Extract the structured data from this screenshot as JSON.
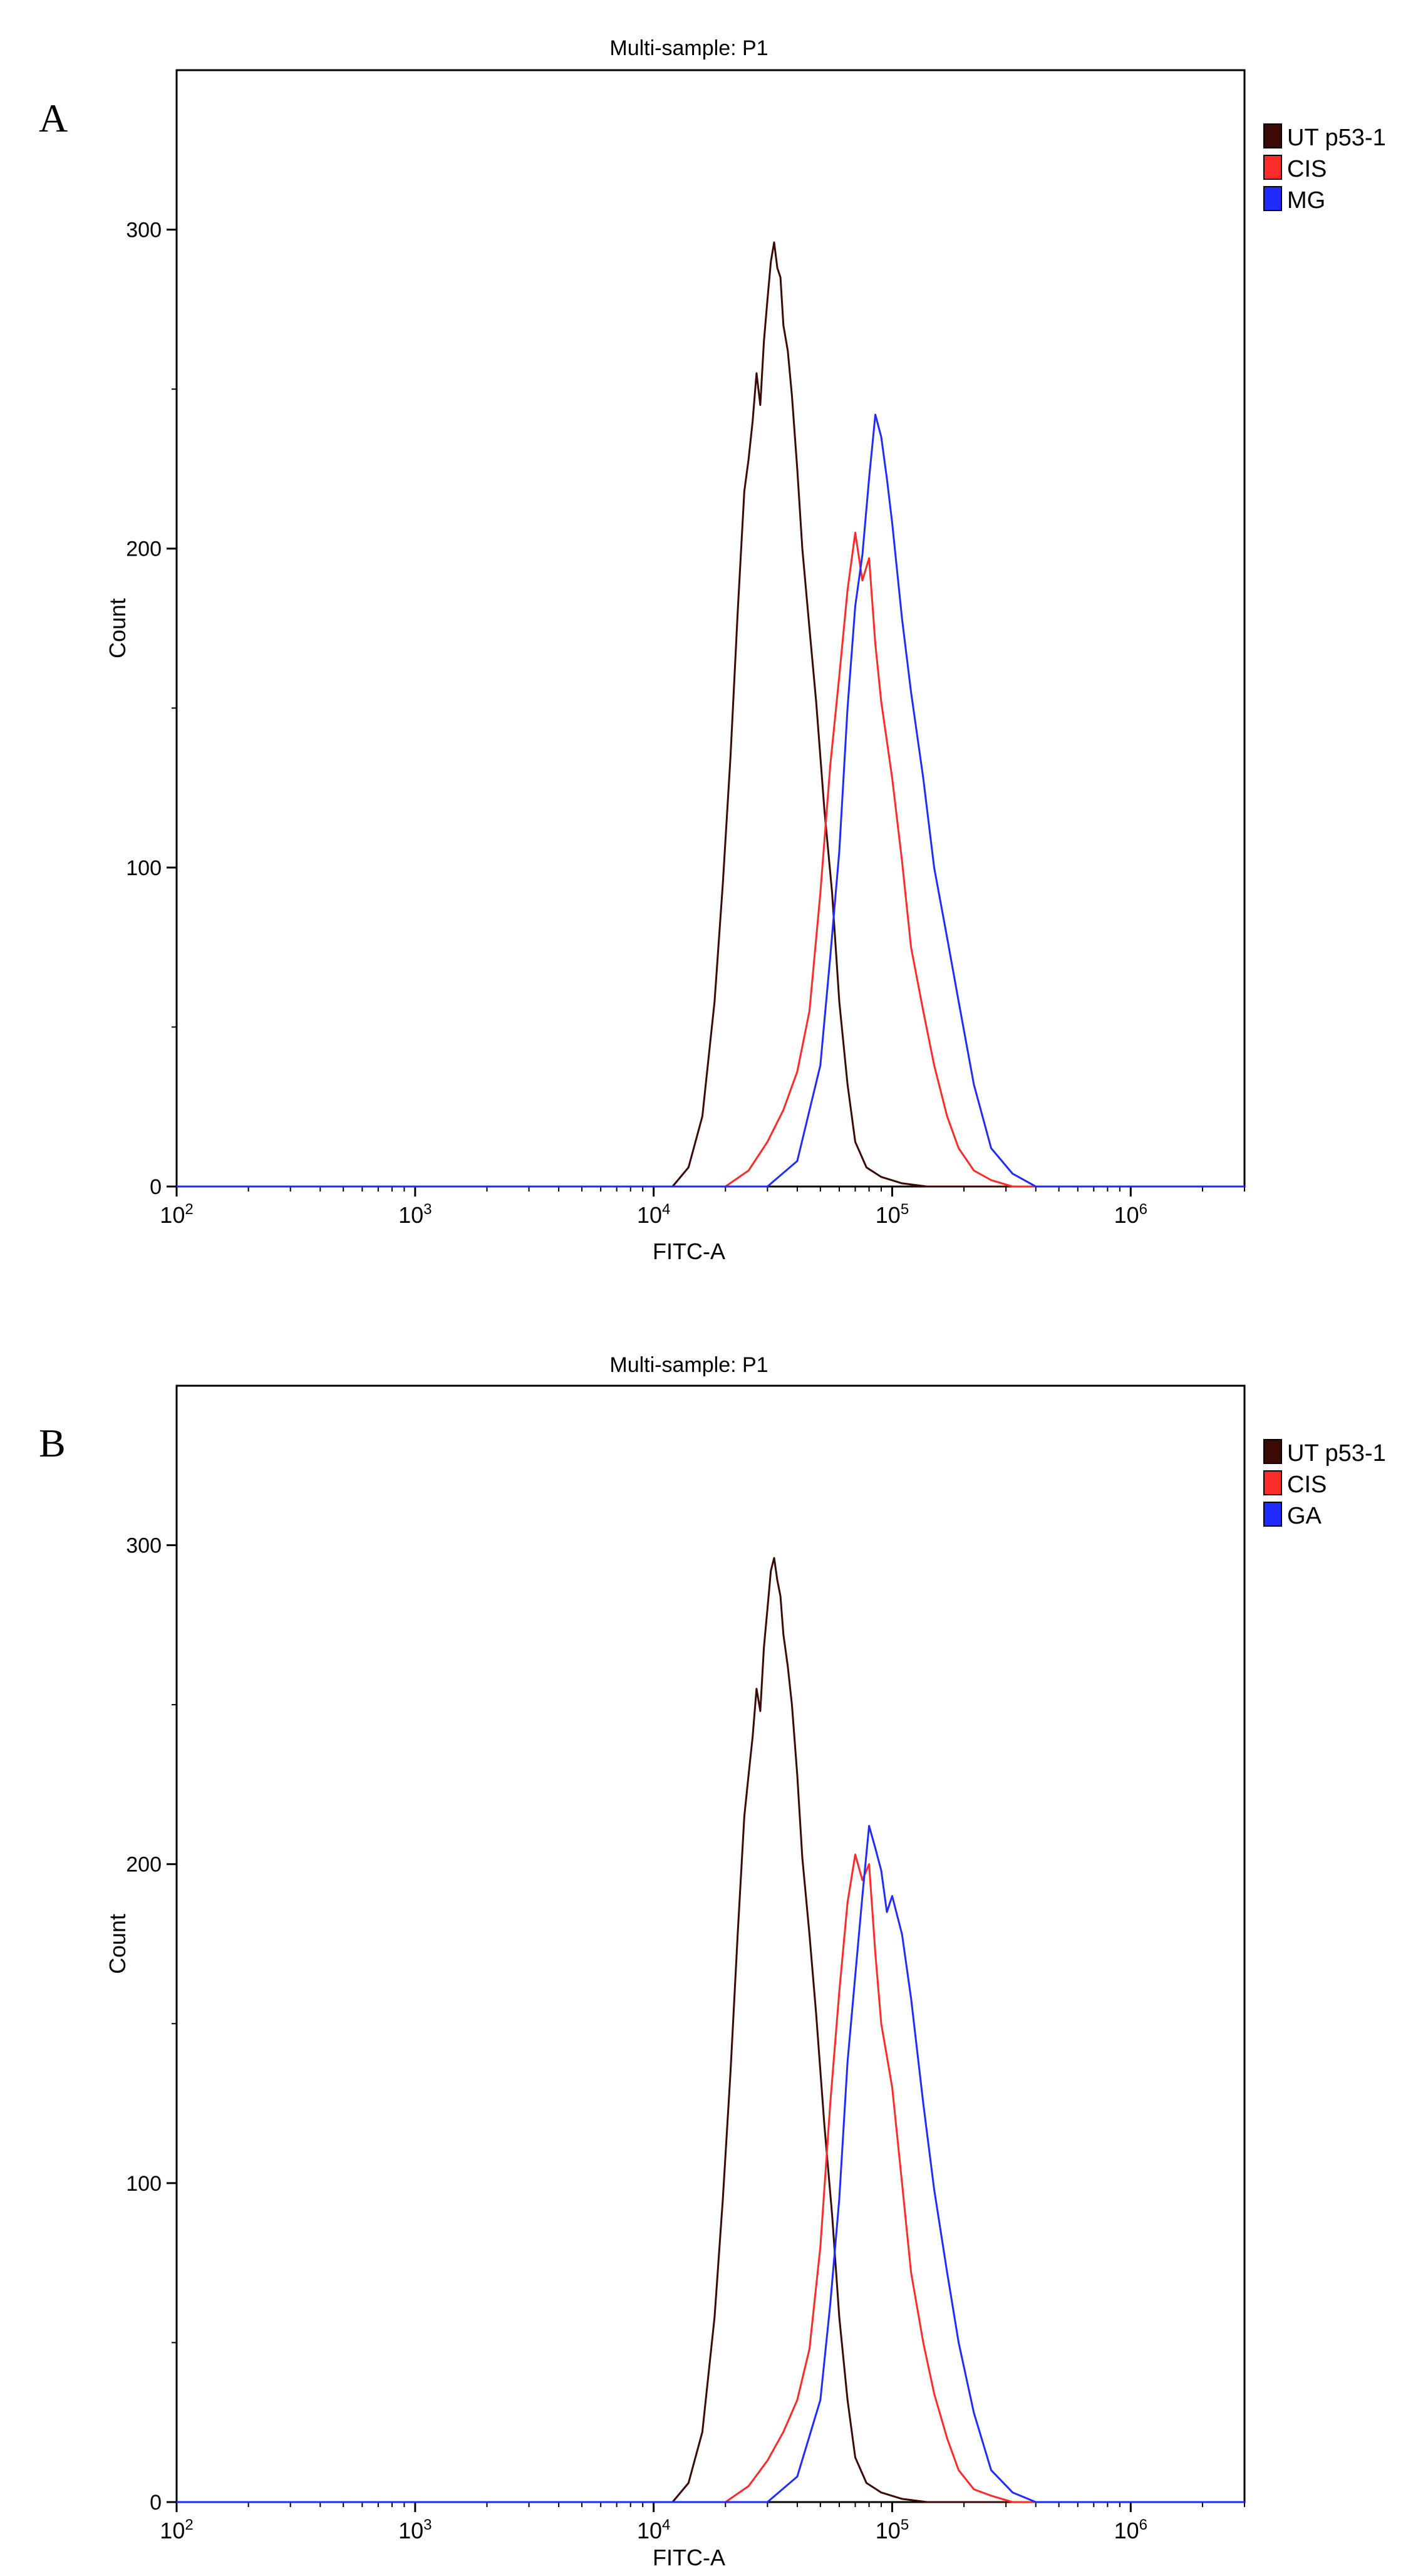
{
  "figure": {
    "panels": [
      "A",
      "B"
    ]
  },
  "chart_data": [
    {
      "panel_label": "A",
      "type": "line",
      "title": "Multi-sample: P1",
      "xlabel": "FITC-A",
      "ylabel": "Count",
      "x_scale": "log",
      "xlim": [
        100,
        3000000
      ],
      "ylim": [
        0,
        350
      ],
      "x_ticks": [
        {
          "value": 100,
          "base": "10",
          "exp": "2"
        },
        {
          "value": 1000,
          "base": "10",
          "exp": "3"
        },
        {
          "value": 10000,
          "base": "10",
          "exp": "4"
        },
        {
          "value": 100000,
          "base": "10",
          "exp": "5"
        },
        {
          "value": 1000000,
          "base": "10",
          "exp": "6"
        }
      ],
      "y_ticks": [
        0,
        100,
        200,
        300
      ],
      "legend_position": "right",
      "series": [
        {
          "name": "UT p53-1",
          "color": "#3b0a05",
          "x": [
            12000,
            14000,
            16000,
            18000,
            19500,
            21000,
            22500,
            24000,
            25000,
            26000,
            27000,
            28000,
            29000,
            30000,
            31000,
            32000,
            33000,
            34000,
            35000,
            36500,
            38000,
            40000,
            42000,
            45000,
            48000,
            52000,
            56000,
            60000,
            65000,
            70000,
            78000,
            90000,
            110000,
            140000
          ],
          "values": [
            0,
            6,
            22,
            58,
            95,
            135,
            180,
            218,
            228,
            240,
            255,
            245,
            265,
            278,
            290,
            296,
            288,
            285,
            270,
            262,
            248,
            225,
            200,
            175,
            152,
            118,
            92,
            58,
            32,
            14,
            6,
            3,
            1,
            0
          ]
        },
        {
          "name": "CIS",
          "color": "#ff2a2a",
          "x": [
            20000,
            25000,
            30000,
            35000,
            40000,
            45000,
            50000,
            55000,
            60000,
            65000,
            70000,
            75000,
            80000,
            85000,
            90000,
            100000,
            110000,
            120000,
            135000,
            150000,
            170000,
            190000,
            220000,
            260000,
            320000
          ],
          "values": [
            0,
            5,
            14,
            24,
            36,
            55,
            92,
            132,
            160,
            187,
            205,
            190,
            197,
            170,
            152,
            128,
            102,
            75,
            55,
            38,
            22,
            12,
            5,
            2,
            0
          ]
        },
        {
          "name": "MG",
          "color": "#1f2bff",
          "x": [
            30000,
            40000,
            50000,
            55000,
            60000,
            65000,
            70000,
            75000,
            80000,
            85000,
            90000,
            95000,
            100000,
            110000,
            120000,
            135000,
            150000,
            170000,
            190000,
            220000,
            260000,
            320000,
            400000
          ],
          "values": [
            0,
            8,
            38,
            72,
            105,
            150,
            182,
            198,
            222,
            242,
            235,
            222,
            208,
            178,
            155,
            128,
            100,
            78,
            58,
            32,
            12,
            4,
            0
          ]
        }
      ]
    },
    {
      "panel_label": "B",
      "type": "line",
      "title": "Multi-sample: P1",
      "xlabel": "FITC-A",
      "ylabel": "Count",
      "x_scale": "log",
      "xlim": [
        100,
        3000000
      ],
      "ylim": [
        0,
        350
      ],
      "x_ticks": [
        {
          "value": 100,
          "base": "10",
          "exp": "2"
        },
        {
          "value": 1000,
          "base": "10",
          "exp": "3"
        },
        {
          "value": 10000,
          "base": "10",
          "exp": "4"
        },
        {
          "value": 100000,
          "base": "10",
          "exp": "5"
        },
        {
          "value": 1000000,
          "base": "10",
          "exp": "6"
        }
      ],
      "y_ticks": [
        0,
        100,
        200,
        300
      ],
      "legend_position": "right",
      "series": [
        {
          "name": "UT p53-1",
          "color": "#3b0a05",
          "x": [
            12000,
            14000,
            16000,
            18000,
            19500,
            21000,
            22500,
            24000,
            25000,
            26000,
            27000,
            28000,
            29000,
            30000,
            31000,
            32000,
            33000,
            34000,
            35000,
            36500,
            38000,
            40000,
            42000,
            45000,
            48000,
            52000,
            56000,
            60000,
            65000,
            70000,
            78000,
            90000,
            110000,
            140000
          ],
          "values": [
            0,
            6,
            22,
            58,
            95,
            135,
            178,
            215,
            228,
            240,
            255,
            248,
            268,
            280,
            292,
            296,
            289,
            284,
            272,
            262,
            250,
            228,
            202,
            178,
            153,
            118,
            90,
            58,
            32,
            14,
            6,
            3,
            1,
            0
          ]
        },
        {
          "name": "CIS",
          "color": "#ff2a2a",
          "x": [
            20000,
            25000,
            30000,
            35000,
            40000,
            45000,
            50000,
            55000,
            60000,
            65000,
            70000,
            75000,
            80000,
            85000,
            90000,
            100000,
            110000,
            120000,
            135000,
            150000,
            170000,
            190000,
            220000,
            260000,
            320000
          ],
          "values": [
            0,
            5,
            13,
            22,
            32,
            48,
            80,
            125,
            160,
            188,
            203,
            195,
            200,
            172,
            150,
            130,
            100,
            72,
            50,
            34,
            20,
            10,
            4,
            2,
            0
          ]
        },
        {
          "name": "GA",
          "color": "#1f2bff",
          "x": [
            30000,
            40000,
            50000,
            55000,
            60000,
            65000,
            70000,
            75000,
            80000,
            85000,
            90000,
            95000,
            100000,
            110000,
            120000,
            135000,
            150000,
            170000,
            190000,
            220000,
            260000,
            320000,
            400000
          ],
          "values": [
            0,
            8,
            32,
            62,
            95,
            138,
            165,
            190,
            212,
            205,
            198,
            185,
            190,
            178,
            158,
            125,
            98,
            72,
            50,
            28,
            10,
            3,
            0
          ]
        }
      ]
    }
  ]
}
